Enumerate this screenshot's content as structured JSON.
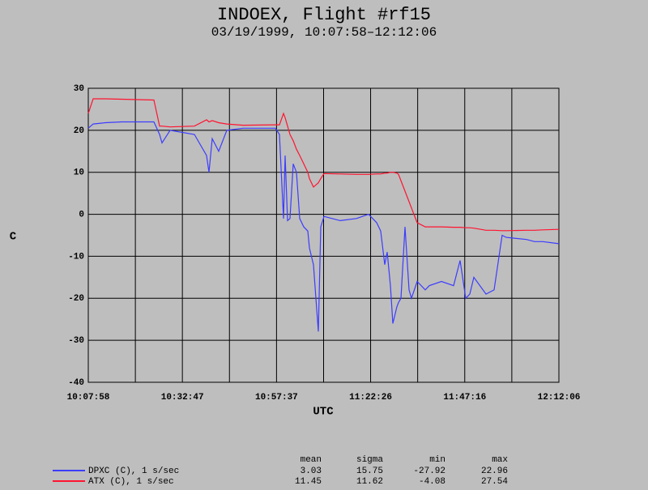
{
  "chart_data": {
    "type": "line",
    "title": "INDOEX, Flight #rf15",
    "subtitle": "03/19/1999, 10:07:58–12:12:06",
    "x_label": "UTC",
    "y_label": "C",
    "x": [
      "10:07:58",
      "10:09:15",
      "10:12:27",
      "10:16:44",
      "10:25:17",
      "10:26:46",
      "10:27:25",
      "10:29:33",
      "10:35:57",
      "10:39:10",
      "10:39:48",
      "10:40:39",
      "10:42:22",
      "10:44:30",
      "10:48:46",
      "10:57:19",
      "10:58:23",
      "10:59:27",
      "10:59:53",
      "11:00:31",
      "11:01:10",
      "11:02:01",
      "11:02:52",
      "11:03:44",
      "11:04:48",
      "11:05:52",
      "11:06:18",
      "11:07:22",
      "11:08:00",
      "11:08:39",
      "11:09:17",
      "11:10:08",
      "11:14:25",
      "11:18:41",
      "11:21:53",
      "11:24:02",
      "11:25:06",
      "11:26:10",
      "11:26:48",
      "11:27:40",
      "11:28:18",
      "11:29:22",
      "11:29:48",
      "11:30:26",
      "11:31:30",
      "11:32:34",
      "11:33:13",
      "11:34:43",
      "11:36:51",
      "11:37:55",
      "11:41:07",
      "11:44:19",
      "11:46:02",
      "11:47:32",
      "11:48:36",
      "11:49:40",
      "11:52:52",
      "11:55:00",
      "11:57:08",
      "11:58:13",
      "12:03:33",
      "12:05:41",
      "12:07:49",
      "12:12:06"
    ],
    "series": [
      {
        "name": "DPXC (C), 1 s/sec",
        "color": "#3c3cff",
        "values": [
          20.5,
          21.5,
          21.8,
          22,
          22,
          19,
          17,
          20,
          19,
          14,
          10,
          18,
          15,
          20,
          20.5,
          20.5,
          19,
          -1,
          14,
          -1.5,
          -1,
          12,
          10,
          -1,
          -3,
          -4,
          -8,
          -12,
          -20,
          -27.9,
          -3,
          -0.5,
          -1.5,
          -1,
          0,
          -2,
          -4,
          -12,
          -9,
          -17,
          -26,
          -22,
          -21,
          -20,
          -3,
          -18,
          -20,
          -16,
          -18,
          -17,
          -16,
          -17,
          -11,
          -20,
          -19,
          -15,
          -19,
          -18,
          -5,
          -5.5,
          -6,
          -6.5,
          -6.5,
          -7
        ],
        "stats": [
          3.03,
          15.75,
          -27.92,
          22.96
        ]
      },
      {
        "name": "ATX (C), 1 s/sec",
        "color": "#ff1430",
        "values": [
          24,
          27.5,
          27.5,
          27.4,
          27.2,
          21,
          21,
          20.8,
          21,
          22.5,
          22,
          22.3,
          21.8,
          21.5,
          21.2,
          21.3,
          21.3,
          24,
          23,
          21,
          19,
          17.5,
          15.5,
          14,
          12,
          10,
          8.5,
          6.5,
          7,
          7.5,
          8.5,
          9.7,
          9.6,
          9.5,
          9.5,
          9.6,
          9.6,
          9.8,
          9.8,
          10,
          10,
          9.8,
          9.5,
          8,
          5.5,
          3,
          1.5,
          -2,
          -3,
          -3,
          -3,
          -3.1,
          -3.1,
          -3.2,
          -3.2,
          -3.3,
          -3.8,
          -3.8,
          -3.9,
          -3.9,
          -3.8,
          -3.8,
          -3.7,
          -3.6
        ],
        "stats": [
          11.45,
          11.62,
          -4.08,
          27.54
        ]
      }
    ],
    "stats_columns": [
      "mean",
      "sigma",
      "min",
      "max"
    ],
    "xlim": [
      "10:07:58",
      "12:12:06"
    ],
    "xticks": [
      "10:07:58",
      "10:32:47",
      "10:57:37",
      "11:22:26",
      "11:47:16",
      "12:12:06"
    ],
    "xminorticks": [
      "10:20:23",
      "10:45:12",
      "11:10:02",
      "11:34:51",
      "11:59:41"
    ],
    "ylim": [
      -40,
      30
    ],
    "yticks": [
      -40,
      -30,
      -20,
      -10,
      0,
      10,
      20,
      30
    ],
    "grid": true
  }
}
